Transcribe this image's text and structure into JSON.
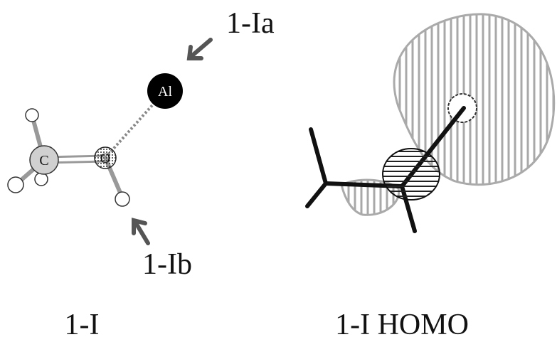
{
  "atoms": {
    "al": "Al",
    "c": "C",
    "o": "O"
  },
  "annotations": {
    "top": "1-Ia",
    "bottom": "1-Ib"
  },
  "captions": {
    "left": "1-I",
    "right": "1-I HOMO"
  }
}
